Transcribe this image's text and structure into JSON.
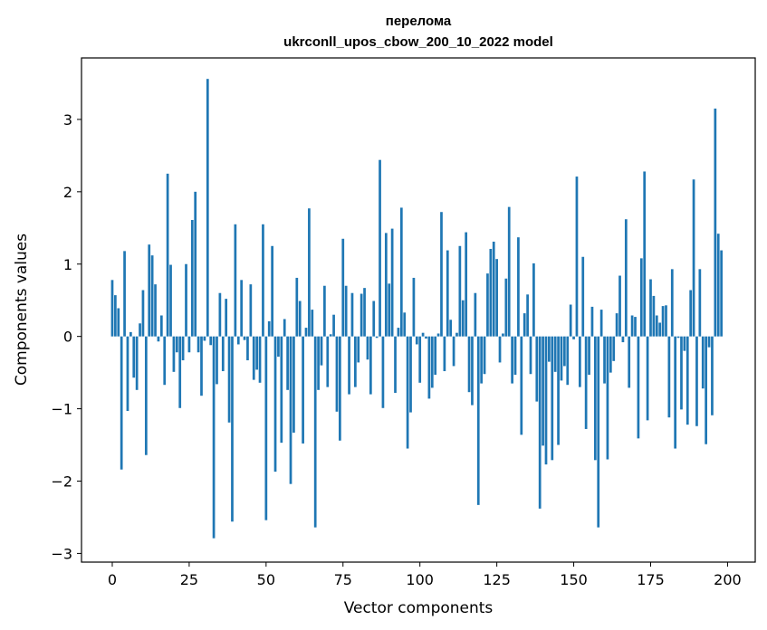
{
  "chart_data": {
    "type": "bar",
    "title_line1": "перелома",
    "title_line2": "ukrconll_upos_cbow_200_10_2022 model",
    "xlabel": "Vector components",
    "ylabel": "Components values",
    "xlim": [
      -10,
      209
    ],
    "ylim": [
      -3.12,
      3.85
    ],
    "xticks": [
      0,
      25,
      50,
      75,
      100,
      125,
      150,
      175,
      200
    ],
    "yticks": [
      -3,
      -2,
      -1,
      0,
      1,
      2,
      3
    ],
    "ytick_labels": [
      "−3",
      "−2",
      "−1",
      "0",
      "1",
      "2",
      "3"
    ],
    "bar_color": "#1f77b4",
    "values": [
      0.78,
      0.57,
      0.39,
      -1.84,
      1.18,
      -1.03,
      0.06,
      -0.57,
      -0.74,
      0.18,
      0.64,
      -1.64,
      1.27,
      1.12,
      0.72,
      -0.07,
      0.29,
      -0.67,
      2.25,
      0.99,
      -0.49,
      -0.22,
      -0.99,
      -0.33,
      1.0,
      -0.22,
      1.61,
      2.0,
      -0.22,
      -0.82,
      -0.06,
      3.56,
      -0.12,
      -2.79,
      -0.66,
      0.6,
      -0.48,
      0.52,
      -1.19,
      -2.56,
      1.55,
      -0.11,
      0.78,
      -0.05,
      -0.33,
      0.72,
      -0.6,
      -0.46,
      -0.64,
      1.55,
      -2.54,
      0.21,
      1.25,
      -1.87,
      -0.28,
      -1.47,
      0.24,
      -0.74,
      -2.04,
      -1.33,
      0.81,
      0.49,
      -1.48,
      0.12,
      1.77,
      0.37,
      -2.64,
      -0.74,
      -0.4,
      0.7,
      -0.7,
      0.03,
      0.3,
      -1.04,
      -1.44,
      1.35,
      0.7,
      -0.8,
      0.6,
      -0.7,
      -0.36,
      0.59,
      0.67,
      -0.32,
      -0.8,
      0.49,
      -0.02,
      2.44,
      -0.99,
      1.43,
      0.73,
      1.49,
      -0.78,
      0.12,
      1.78,
      0.33,
      -1.55,
      -1.05,
      0.81,
      -0.11,
      -0.64,
      0.05,
      -0.03,
      -0.86,
      -0.71,
      -0.53,
      0.04,
      1.72,
      -0.48,
      1.19,
      0.23,
      -0.41,
      0.05,
      1.25,
      0.5,
      1.44,
      -0.77,
      -0.95,
      0.6,
      -2.33,
      -0.65,
      -0.52,
      0.87,
      1.21,
      1.31,
      1.07,
      -0.36,
      0.04,
      0.8,
      1.79,
      -0.65,
      -0.53,
      1.37,
      -1.36,
      0.32,
      0.58,
      -0.52,
      1.01,
      -0.9,
      -2.38,
      -1.51,
      -1.77,
      -0.35,
      -1.71,
      -0.49,
      -1.5,
      -0.61,
      -0.41,
      -0.67,
      0.44,
      -0.04,
      2.21,
      -0.7,
      1.1,
      -1.28,
      -0.53,
      0.41,
      -1.71,
      -2.64,
      0.37,
      -0.65,
      -1.7,
      -0.5,
      -0.34,
      0.32,
      0.84,
      -0.08,
      1.62,
      -0.71,
      0.29,
      0.27,
      -1.41,
      1.08,
      2.28,
      -1.16,
      0.79,
      0.56,
      0.29,
      0.19,
      0.42,
      0.43,
      -1.12,
      0.93,
      -1.55,
      -0.02,
      -1.01,
      -0.2,
      -1.22,
      0.64,
      2.17,
      -1.24,
      0.93,
      -0.72,
      -1.49,
      -0.15,
      -1.09,
      3.15,
      1.42,
      1.19
    ]
  }
}
